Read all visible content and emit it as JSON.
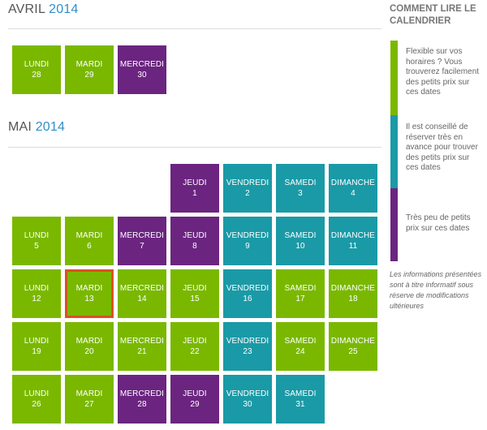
{
  "months": [
    {
      "name": "AVRIL",
      "year": "2014",
      "days": [
        {
          "weekday": "LUNDI",
          "date": "28",
          "color": "green"
        },
        {
          "weekday": "MARDI",
          "date": "29",
          "color": "green"
        },
        {
          "weekday": "MERCREDI",
          "date": "30",
          "color": "purple"
        }
      ]
    },
    {
      "name": "MAI",
      "year": "2014",
      "days": [
        {
          "weekday": "JEUDI",
          "date": "1",
          "color": "purple"
        },
        {
          "weekday": "VENDREDI",
          "date": "2",
          "color": "teal"
        },
        {
          "weekday": "SAMEDI",
          "date": "3",
          "color": "teal"
        },
        {
          "weekday": "DIMANCHE",
          "date": "4",
          "color": "teal"
        },
        {
          "weekday": "LUNDI",
          "date": "5",
          "color": "green"
        },
        {
          "weekday": "MARDI",
          "date": "6",
          "color": "green"
        },
        {
          "weekday": "MERCREDI",
          "date": "7",
          "color": "purple"
        },
        {
          "weekday": "JEUDI",
          "date": "8",
          "color": "purple"
        },
        {
          "weekday": "VENDREDI",
          "date": "9",
          "color": "teal"
        },
        {
          "weekday": "SAMEDI",
          "date": "10",
          "color": "teal"
        },
        {
          "weekday": "DIMANCHE",
          "date": "11",
          "color": "teal"
        },
        {
          "weekday": "LUNDI",
          "date": "12",
          "color": "green"
        },
        {
          "weekday": "MARDI",
          "date": "13",
          "color": "green",
          "selected": true
        },
        {
          "weekday": "MERCREDI",
          "date": "14",
          "color": "green"
        },
        {
          "weekday": "JEUDI",
          "date": "15",
          "color": "green"
        },
        {
          "weekday": "VENDREDI",
          "date": "16",
          "color": "teal"
        },
        {
          "weekday": "SAMEDI",
          "date": "17",
          "color": "green"
        },
        {
          "weekday": "DIMANCHE",
          "date": "18",
          "color": "green"
        },
        {
          "weekday": "LUNDI",
          "date": "19",
          "color": "green"
        },
        {
          "weekday": "MARDI",
          "date": "20",
          "color": "green"
        },
        {
          "weekday": "MERCREDI",
          "date": "21",
          "color": "green"
        },
        {
          "weekday": "JEUDI",
          "date": "22",
          "color": "green"
        },
        {
          "weekday": "VENDREDI",
          "date": "23",
          "color": "teal"
        },
        {
          "weekday": "SAMEDI",
          "date": "24",
          "color": "green"
        },
        {
          "weekday": "DIMANCHE",
          "date": "25",
          "color": "green"
        },
        {
          "weekday": "LUNDI",
          "date": "26",
          "color": "green"
        },
        {
          "weekday": "MARDI",
          "date": "27",
          "color": "green"
        },
        {
          "weekday": "MERCREDI",
          "date": "28",
          "color": "purple"
        },
        {
          "weekday": "JEUDI",
          "date": "29",
          "color": "purple"
        },
        {
          "weekday": "VENDREDI",
          "date": "30",
          "color": "teal"
        },
        {
          "weekday": "SAMEDI",
          "date": "31",
          "color": "teal"
        }
      ]
    }
  ],
  "legend": {
    "title": "COMMENT LIRE LE CALENDRIER",
    "items": [
      {
        "color": "green",
        "text": "Flexible sur vos horaires ? Vous trouverez facilement des petits prix sur ces dates"
      },
      {
        "color": "teal",
        "text": "Il est conseillé de réserver très en avance pour trouver des petits prix sur ces dates"
      },
      {
        "color": "purple",
        "text": "Très peu de petits prix sur ces dates"
      }
    ],
    "note": "Les informations présentées sont à titre informatif sous réserve de modifications ultérieures"
  },
  "colors": {
    "green": "#7ab800",
    "teal": "#1a9aa6",
    "purple": "#6b2580",
    "selected_border": "#d9531e",
    "year_accent": "#2f8fc8"
  }
}
